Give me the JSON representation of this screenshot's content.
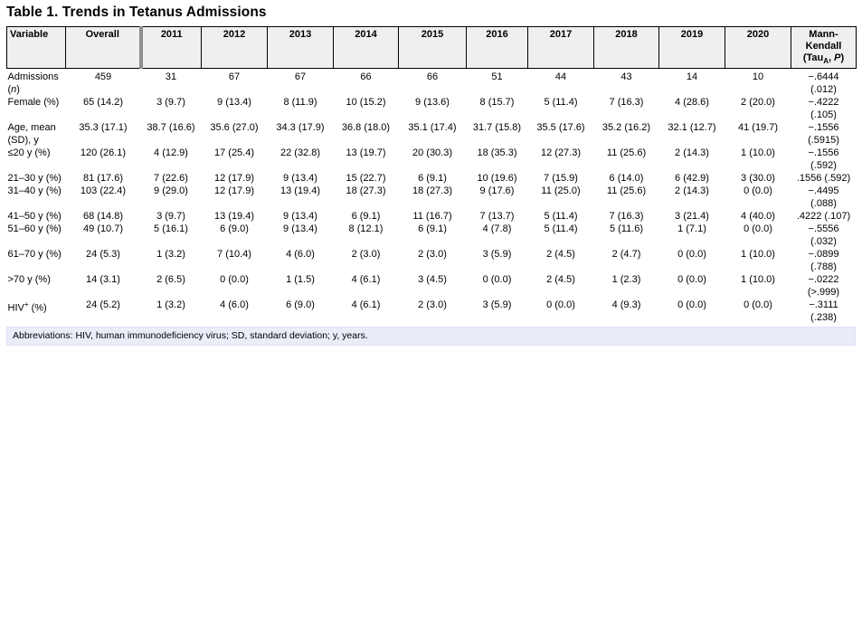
{
  "title": "Table 1. Trends in Tetanus Admissions",
  "colors": {
    "header_bg": "#efefef",
    "divider_gray": "#8e8e8e",
    "footnote_bg": "#e9edf8",
    "header_border": "#000000"
  },
  "table": {
    "columns": [
      "Variable",
      "Overall",
      "2011",
      "2012",
      "2013",
      "2014",
      "2015",
      "2016",
      "2017",
      "2018",
      "2019",
      "2020",
      "Mann-\nKendall\n(Tau~A~, *P*)"
    ],
    "rows": [
      {
        "label": "Admissions\n(*n*)",
        "values": [
          "459",
          "31",
          "67",
          "67",
          "66",
          "66",
          "51",
          "44",
          "43",
          "14",
          "10"
        ],
        "mk": "−.6444\n(.012)"
      },
      {
        "label": "Female (%)",
        "values": [
          "65 (14.2)",
          "3 (9.7)",
          "9 (13.4)",
          "8 (11.9)",
          "10 (15.2)",
          "9 (13.6)",
          "8 (15.7)",
          "5 (11.4)",
          "7 (16.3)",
          "4 (28.6)",
          "2 (20.0)"
        ],
        "mk": "−.4222\n(.105)"
      },
      {
        "label": "Age, mean\n(SD), y",
        "values": [
          "35.3 (17.1)",
          "38.7 (16.6)",
          "35.6 (27.0)",
          "34.3 (17.9)",
          "36.8 (18.0)",
          "35.1 (17.4)",
          "31.7 (15.8)",
          "35.5 (17.6)",
          "35.2 (16.2)",
          "32.1 (12.7)",
          "41 (19.7)"
        ],
        "mk": "−.1556\n(.5915)"
      },
      {
        "label": "≤20 y (%)",
        "values": [
          "120 (26.1)",
          "4 (12.9)",
          "17 (25.4)",
          "22 (32.8)",
          "13 (19.7)",
          "20 (30.3)",
          "18 (35.3)",
          "12 (27.3)",
          "11 (25.6)",
          "2 (14.3)",
          "1 (10.0)"
        ],
        "mk": "−.1556\n(.592)"
      },
      {
        "label": "21–30 y (%)",
        "values": [
          "81 (17.6)",
          "7 (22.6)",
          "12 (17.9)",
          "9 (13.4)",
          "15 (22.7)",
          "6 (9.1)",
          "10 (19.6)",
          "7 (15.9)",
          "6 (14.0)",
          "6 (42.9)",
          "3 (30.0)"
        ],
        "mk": ".1556 (.592)"
      },
      {
        "label": "31–40 y (%)",
        "values": [
          "103 (22.4)",
          "9 (29.0)",
          "12 (17.9)",
          "13 (19.4)",
          "18 (27.3)",
          "18 (27.3)",
          "9 (17.6)",
          "11 (25.0)",
          "11 (25.6)",
          "2 (14.3)",
          "0 (0.0)"
        ],
        "mk": "−.4495\n(.088)"
      },
      {
        "label": "41–50 y (%)",
        "values": [
          "68 (14.8)",
          "3 (9.7)",
          "13 (19.4)",
          "9 (13.4)",
          "6 (9.1)",
          "11 (16.7)",
          "7 (13.7)",
          "5 (11.4)",
          "7 (16.3)",
          "3 (21.4)",
          "4 (40.0)"
        ],
        "mk": ".4222 (.107)"
      },
      {
        "label": "51–60 y (%)",
        "values": [
          "49 (10.7)",
          "5 (16.1)",
          "6 (9.0)",
          "9 (13.4)",
          "8 (12.1)",
          "6 (9.1)",
          "4 (7.8)",
          "5 (11.4)",
          "5 (11.6)",
          "1 (7.1)",
          "0 (0.0)"
        ],
        "mk": "−.5556\n(.032)"
      },
      {
        "label": "61–70 y (%)",
        "values": [
          "24 (5.3)",
          "1 (3.2)",
          "7 (10.4)",
          "4 (6.0)",
          "2 (3.0)",
          "2 (3.0)",
          "3 (5.9)",
          "2 (4.5)",
          "2 (4.7)",
          "0 (0.0)",
          "1 (10.0)"
        ],
        "mk": "−.0899\n(.788)"
      },
      {
        "label": ">70 y (%)",
        "values": [
          "14 (3.1)",
          "2 (6.5)",
          "0 (0.0)",
          "1 (1.5)",
          "4 (6.1)",
          "3 (4.5)",
          "0 (0.0)",
          "2 (4.5)",
          "1 (2.3)",
          "0 (0.0)",
          "1 (10.0)"
        ],
        "mk": "−.0222\n(>.999)"
      },
      {
        "label": "HIV^+^ (%)",
        "values": [
          "24 (5.2)",
          "1 (3.2)",
          "4 (6.0)",
          "6 (9.0)",
          "4 (6.1)",
          "2 (3.0)",
          "3 (5.9)",
          "0 (0.0)",
          "4 (9.3)",
          "0 (0.0)",
          "0 (0.0)"
        ],
        "mk": "−.3111\n(.238)"
      }
    ],
    "footnote": "Abbreviations: HIV, human immunodeficiency virus; SD, standard deviation; y, years."
  }
}
